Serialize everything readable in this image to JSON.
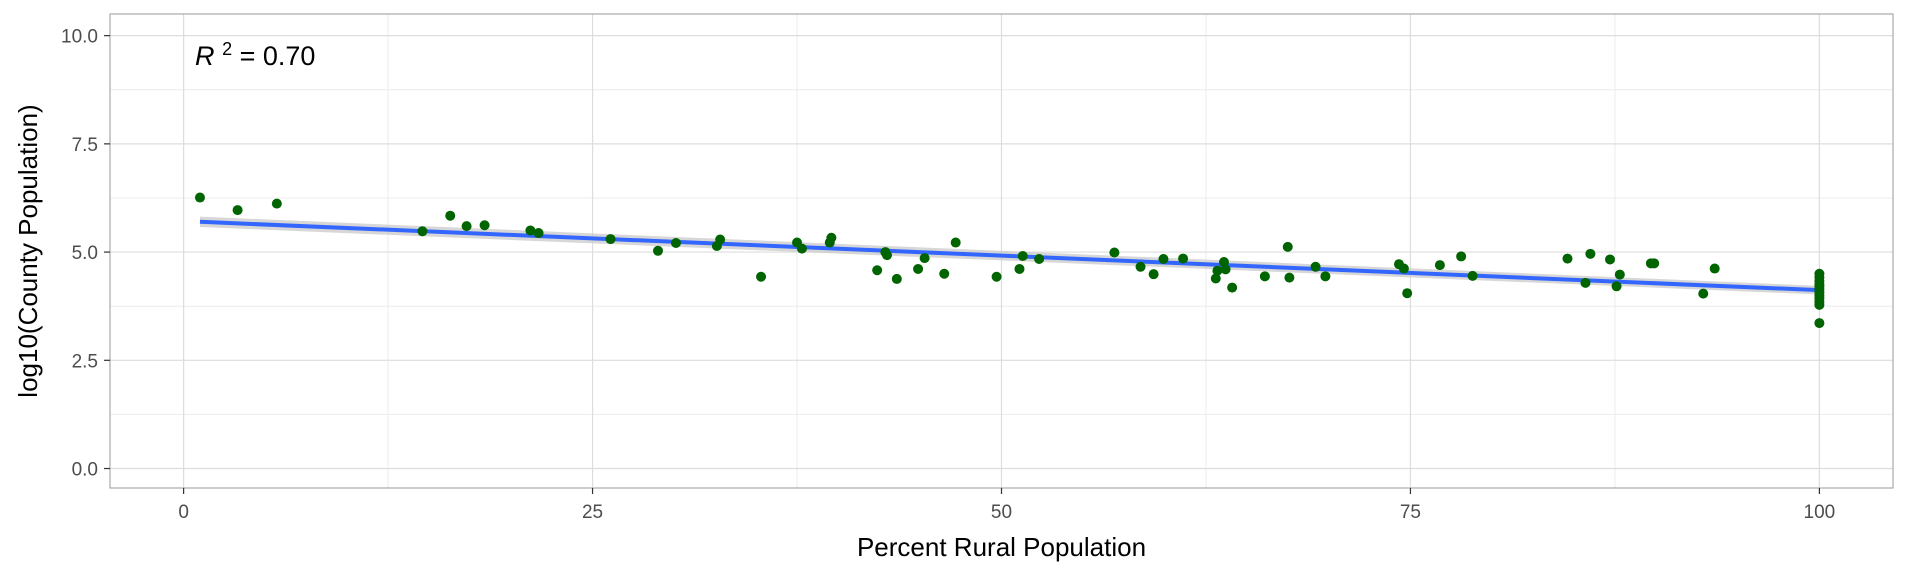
{
  "chart_data": {
    "type": "scatter",
    "title": "",
    "xlabel": "Percent Rural Population",
    "ylabel": "log10(County Population)",
    "xlim": [
      -4.5,
      104.5
    ],
    "ylim": [
      -0.45,
      10.5
    ],
    "x_ticks": [
      0,
      25,
      50,
      75,
      100
    ],
    "x_tick_labels": [
      "0",
      "25",
      "50",
      "75",
      "100"
    ],
    "y_ticks": [
      0,
      2.5,
      5,
      7.5,
      10
    ],
    "y_tick_labels": [
      "0.0",
      "2.5",
      "5.0",
      "7.5",
      "10.0"
    ],
    "grid": true,
    "annotation": {
      "prefix": "R",
      "superscript": "2",
      "suffix": " = 0.70",
      "x": 0.7,
      "y": 9.55
    },
    "points": [
      [
        1.0,
        6.26
      ],
      [
        3.3,
        5.97
      ],
      [
        5.7,
        6.12
      ],
      [
        14.6,
        5.48
      ],
      [
        16.3,
        5.84
      ],
      [
        17.3,
        5.6
      ],
      [
        18.4,
        5.62
      ],
      [
        21.2,
        5.5
      ],
      [
        21.7,
        5.44
      ],
      [
        26.1,
        5.3
      ],
      [
        29.0,
        5.03
      ],
      [
        30.1,
        5.21
      ],
      [
        32.6,
        5.14
      ],
      [
        32.8,
        5.29
      ],
      [
        35.3,
        4.43
      ],
      [
        37.5,
        5.22
      ],
      [
        37.8,
        5.08
      ],
      [
        39.5,
        5.22
      ],
      [
        39.6,
        5.33
      ],
      [
        42.4,
        4.58
      ],
      [
        42.9,
        5.0
      ],
      [
        43.0,
        4.93
      ],
      [
        43.6,
        4.38
      ],
      [
        44.9,
        4.61
      ],
      [
        45.3,
        4.86
      ],
      [
        46.5,
        4.5
      ],
      [
        47.2,
        5.22
      ],
      [
        49.7,
        4.43
      ],
      [
        51.1,
        4.61
      ],
      [
        51.3,
        4.91
      ],
      [
        52.3,
        4.84
      ],
      [
        56.9,
        4.99
      ],
      [
        58.5,
        4.66
      ],
      [
        59.3,
        4.49
      ],
      [
        59.9,
        4.84
      ],
      [
        61.1,
        4.85
      ],
      [
        63.1,
        4.39
      ],
      [
        63.2,
        4.57
      ],
      [
        63.6,
        4.77
      ],
      [
        63.7,
        4.6
      ],
      [
        64.1,
        4.18
      ],
      [
        66.1,
        4.44
      ],
      [
        67.5,
        5.12
      ],
      [
        67.6,
        4.41
      ],
      [
        69.2,
        4.66
      ],
      [
        69.8,
        4.44
      ],
      [
        74.3,
        4.72
      ],
      [
        74.6,
        4.62
      ],
      [
        74.8,
        4.05
      ],
      [
        76.8,
        4.7
      ],
      [
        78.1,
        4.9
      ],
      [
        78.8,
        4.45
      ],
      [
        84.6,
        4.85
      ],
      [
        85.7,
        4.29
      ],
      [
        86.0,
        4.96
      ],
      [
        87.2,
        4.83
      ],
      [
        87.6,
        4.21
      ],
      [
        87.8,
        4.48
      ],
      [
        89.7,
        4.74
      ],
      [
        89.9,
        4.74
      ],
      [
        92.9,
        4.04
      ],
      [
        93.6,
        4.62
      ],
      [
        100,
        4.5
      ],
      [
        100,
        4.42
      ],
      [
        100,
        4.33
      ],
      [
        100,
        4.26
      ],
      [
        100,
        4.21
      ],
      [
        100,
        4.14
      ],
      [
        100,
        4.07
      ],
      [
        100,
        3.99
      ],
      [
        100,
        3.93
      ],
      [
        100,
        3.85
      ],
      [
        100,
        3.78
      ],
      [
        100,
        3.36
      ]
    ],
    "fit": {
      "x": [
        1.0,
        100.0
      ],
      "y": [
        5.7,
        4.12
      ],
      "ci_low": [
        5.58,
        4.02
      ],
      "ci_high": [
        5.82,
        4.22
      ]
    },
    "colors": {
      "points": "#006400",
      "fit_line": "#3366ff",
      "ci_band": "#c9c9c9",
      "grid_major": "#dddddd",
      "grid_minor": "#ececec",
      "panel_border": "#a9a9a9"
    }
  }
}
